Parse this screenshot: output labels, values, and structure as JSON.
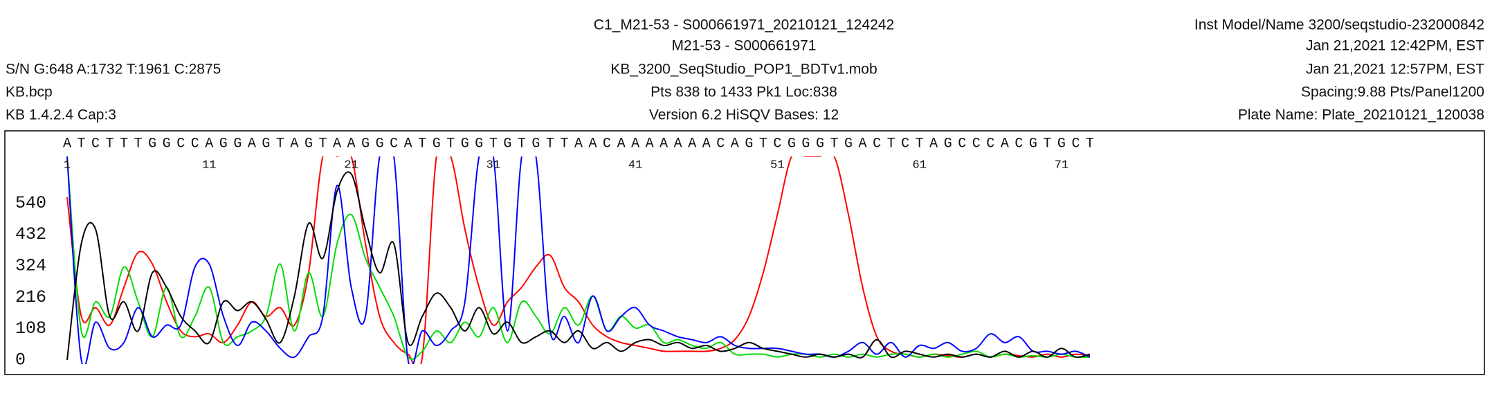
{
  "header": {
    "left": [
      "S/N G:648 A:1732 T:1961 C:2875",
      "KB.bcp",
      "KB 1.4.2.4      Cap:3"
    ],
    "center": [
      "C1_M21-53 - S000661971_20210121_124242",
      "M21-53 - S000661971",
      "KB_3200_SeqStudio_POP1_BDTv1.mob",
      "Pts 838 to 1433 Pk1 Loc:838",
      "Version 6.2    HiSQV Bases: 12"
    ],
    "right": [
      "Inst Model/Name 3200/seqstudio-232000842",
      "Jan 21,2021 12:42PM, EST",
      "Jan 21,2021 12:57PM, EST",
      "Spacing:9.88  Pts/Panel1200",
      "Plate Name: Plate_20210121_120038"
    ]
  },
  "chart_data": {
    "type": "line",
    "bases": [
      "A",
      "T",
      "C",
      "T",
      "T",
      "T",
      "G",
      "G",
      "C",
      "C",
      "A",
      "G",
      "G",
      "A",
      "G",
      "T",
      "A",
      "G",
      "T",
      "A",
      "A",
      "G",
      "G",
      "C",
      "A",
      "T",
      "G",
      "T",
      "G",
      "G",
      "T",
      "G",
      "T",
      "G",
      "T",
      "T",
      "A",
      "A",
      "C",
      "A",
      "A",
      "A",
      "A",
      "A",
      "A",
      "A",
      "C",
      "A",
      "G",
      "T",
      "C",
      "G",
      "G",
      "G",
      "T",
      "G",
      "A",
      "C",
      "T",
      "C",
      "T",
      "A",
      "G",
      "C",
      "C",
      "C",
      "A",
      "C",
      "G",
      "T",
      "G",
      "C",
      "T"
    ],
    "base_colors": {
      "A": "#00cc00",
      "C": "#0000ff",
      "G": "#000000",
      "T": "#ff0000"
    },
    "xticks": [
      1,
      11,
      21,
      31,
      41,
      51,
      61,
      71
    ],
    "xlim": [
      1,
      73
    ],
    "ylim": [
      0,
      700
    ],
    "yticks": [
      0,
      108,
      216,
      324,
      432,
      540
    ],
    "x": [
      1,
      2,
      3,
      4,
      5,
      6,
      7,
      8,
      9,
      10,
      11,
      12,
      13,
      14,
      15,
      16,
      17,
      18,
      19,
      20,
      21,
      22,
      23,
      24,
      25,
      26,
      27,
      28,
      29,
      30,
      31,
      32,
      33,
      34,
      35,
      36,
      37,
      38,
      39,
      40,
      41,
      42,
      43,
      44,
      45,
      46,
      47,
      48,
      49,
      50,
      51,
      52,
      53,
      54,
      55,
      56,
      57,
      58,
      59,
      60,
      61,
      62,
      63,
      64,
      65,
      66,
      67,
      68,
      69,
      70,
      71,
      72,
      73
    ],
    "series": [
      {
        "color": "#ff0000",
        "values": [
          560,
          150,
          180,
          120,
          250,
          370,
          330,
          200,
          100,
          80,
          90,
          60,
          120,
          200,
          150,
          180,
          120,
          300,
          700,
          700,
          700,
          400,
          150,
          60,
          20,
          10,
          700,
          700,
          450,
          250,
          120,
          200,
          250,
          320,
          360,
          250,
          200,
          120,
          80,
          60,
          50,
          40,
          30,
          30,
          30,
          30,
          40,
          70,
          150,
          300,
          500,
          700,
          700,
          700,
          700,
          500,
          250,
          80,
          30,
          20,
          10,
          20,
          15,
          10,
          20,
          10,
          20,
          15,
          10,
          20,
          10,
          20,
          15
        ]
      },
      {
        "color": "#00dd00",
        "values": [
          700,
          100,
          200,
          150,
          320,
          200,
          80,
          250,
          80,
          150,
          250,
          60,
          80,
          100,
          150,
          330,
          100,
          300,
          150,
          400,
          500,
          350,
          250,
          150,
          10,
          30,
          100,
          60,
          130,
          80,
          180,
          60,
          200,
          150,
          90,
          180,
          120,
          220,
          100,
          150,
          110,
          120,
          60,
          70,
          50,
          40,
          60,
          20,
          20,
          20,
          10,
          20,
          20,
          10,
          20,
          10,
          20,
          10,
          20,
          20,
          10,
          20,
          10,
          20,
          30,
          10,
          20,
          10,
          15,
          10,
          20,
          10,
          10
        ]
      },
      {
        "color": "#0000ff",
        "values": [
          700,
          0,
          130,
          40,
          60,
          180,
          80,
          120,
          120,
          320,
          330,
          150,
          50,
          130,
          100,
          40,
          10,
          80,
          150,
          600,
          250,
          150,
          700,
          700,
          0,
          100,
          50,
          100,
          200,
          700,
          700,
          100,
          700,
          700,
          100,
          150,
          60,
          220,
          100,
          150,
          180,
          120,
          100,
          80,
          70,
          60,
          80,
          50,
          40,
          40,
          40,
          30,
          20,
          20,
          10,
          30,
          60,
          20,
          60,
          10,
          50,
          40,
          60,
          30,
          40,
          90,
          60,
          80,
          30,
          30,
          20,
          30,
          10
        ]
      },
      {
        "color": "#000000",
        "values": [
          0,
          400,
          450,
          150,
          200,
          100,
          300,
          250,
          150,
          100,
          60,
          200,
          170,
          200,
          140,
          60,
          220,
          470,
          350,
          580,
          640,
          450,
          300,
          400,
          60,
          150,
          230,
          180,
          100,
          180,
          90,
          130,
          60,
          80,
          100,
          60,
          100,
          40,
          60,
          30,
          60,
          70,
          50,
          60,
          40,
          50,
          30,
          40,
          60,
          40,
          30,
          20,
          10,
          20,
          10,
          20,
          10,
          70,
          10,
          30,
          20,
          10,
          20,
          10,
          20,
          10,
          30,
          10,
          30,
          10,
          40,
          10,
          20
        ]
      }
    ]
  }
}
